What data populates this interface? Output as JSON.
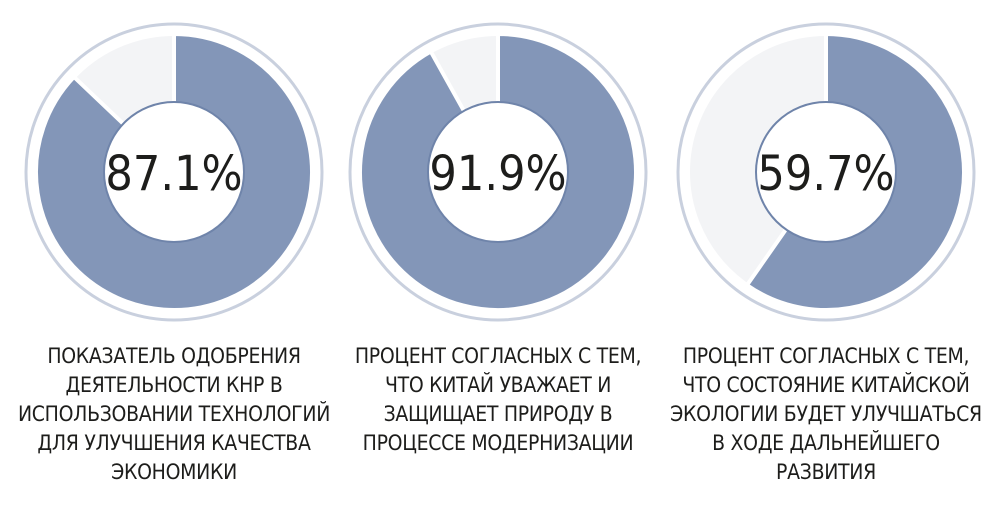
{
  "chart_data": [
    {
      "type": "pie",
      "value": 87.1,
      "label": "87.1%",
      "caption": [
        "ПОКАЗАТЕЛЬ ОДОБРЕНИЯ",
        "ДЕЯТЕЛЬНОСТИ КНР В",
        "ИСПОЛЬЗОВАНИИ ТЕХНОЛОГИЙ",
        "ДЛЯ УЛУЧШЕНИЯ КАЧЕСТВА",
        "ЭКОНОМИКИ"
      ]
    },
    {
      "type": "pie",
      "value": 91.9,
      "label": "91.9%",
      "caption": [
        "ПРОЦЕНТ СОГЛАСНЫХ С ТЕМ,",
        "ЧТО КИТАЙ УВАЖАЕТ И",
        "ЗАЩИЩАЕТ ПРИРОДУ В",
        "ПРОЦЕССЕ МОДЕРНИЗАЦИИ"
      ]
    },
    {
      "type": "pie",
      "value": 59.7,
      "label": "59.7%",
      "caption": [
        "ПРОЦЕНТ СОГЛАСНЫХ С ТЕМ,",
        "ЧТО СОСТОЯНИЕ КИТАЙСКОЙ",
        "ЭКОЛОГИИ БУДЕТ УЛУЧШАТЬСЯ",
        "В ХОДЕ ДАЛЬНЕЙШЕГО",
        "РАЗВИТИЯ"
      ]
    }
  ],
  "colors": {
    "fill": "#8396b8",
    "ring": "#f3f4f6",
    "outline": "#c9d0de",
    "inner_border": "#6f84aa"
  }
}
